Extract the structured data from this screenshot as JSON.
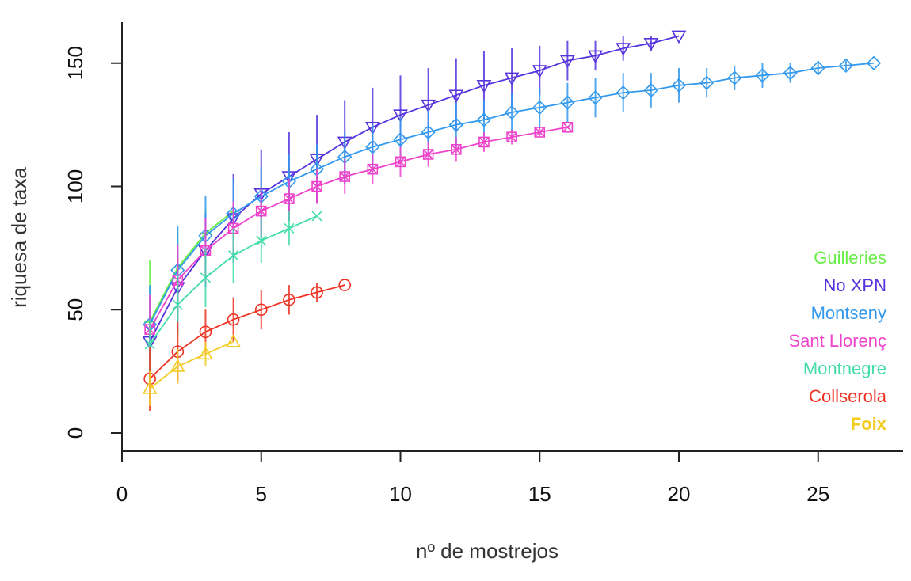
{
  "chart_data": {
    "type": "line",
    "xlabel": "nº de mostrejos",
    "ylabel": "riquesa de taxa",
    "xlim": [
      0,
      28
    ],
    "ylim": [
      0,
      165
    ],
    "xticks": [
      0,
      5,
      10,
      15,
      20,
      25
    ],
    "yticks": [
      0,
      50,
      100,
      150
    ],
    "grid": false,
    "legend_position": "bottom-right",
    "series": [
      {
        "name": "Guilleries",
        "color": "#66ee44",
        "marker": "plus",
        "x": [
          1,
          2,
          3,
          4
        ],
        "y": [
          45,
          67,
          81,
          90
        ],
        "err": [
          25,
          15,
          10,
          5
        ]
      },
      {
        "name": "No XPN",
        "color": "#5533dd",
        "marker": "triangle-down",
        "x": [
          1,
          2,
          3,
          4,
          5,
          6,
          7,
          8,
          9,
          10,
          11,
          12,
          13,
          14,
          15,
          16,
          17,
          18,
          19,
          20
        ],
        "y": [
          37,
          59,
          74,
          87,
          97,
          104,
          111,
          118,
          124,
          129,
          133,
          137,
          141,
          144,
          147,
          151,
          153,
          156,
          158,
          161
        ],
        "err": [
          8,
          14,
          15,
          18,
          18,
          18,
          18,
          17,
          16,
          16,
          15,
          15,
          14,
          12,
          10,
          8,
          6,
          5,
          3,
          0
        ]
      },
      {
        "name": "Montseny",
        "color": "#3399ee",
        "marker": "diamond",
        "x": [
          1,
          2,
          3,
          4,
          5,
          6,
          7,
          8,
          9,
          10,
          11,
          12,
          13,
          14,
          15,
          16,
          17,
          18,
          19,
          20,
          21,
          22,
          23,
          24,
          25,
          26,
          27
        ],
        "y": [
          44,
          66,
          80,
          89,
          96,
          102,
          107,
          112,
          116,
          119,
          122,
          125,
          127,
          130,
          132,
          134,
          136,
          138,
          139,
          141,
          142,
          144,
          145,
          146,
          148,
          149,
          150
        ],
        "err": [
          16,
          18,
          16,
          14,
          12,
          11,
          10,
          10,
          9,
          9,
          9,
          9,
          8,
          8,
          8,
          8,
          8,
          8,
          7,
          7,
          6,
          5,
          5,
          4,
          3,
          2,
          0
        ]
      },
      {
        "name": "Sant Llorenç",
        "color": "#ee44cc",
        "marker": "square-x",
        "x": [
          1,
          2,
          3,
          4,
          5,
          6,
          7,
          8,
          9,
          10,
          11,
          12,
          13,
          14,
          15,
          16
        ],
        "y": [
          42,
          62,
          74,
          83,
          90,
          95,
          100,
          104,
          107,
          110,
          113,
          115,
          118,
          120,
          122,
          124
        ],
        "err": [
          14,
          14,
          13,
          11,
          9,
          8,
          7,
          7,
          6,
          6,
          5,
          5,
          4,
          3,
          2,
          0
        ]
      },
      {
        "name": "Montnegre",
        "color": "#44ddaa",
        "marker": "x",
        "x": [
          1,
          2,
          3,
          4,
          5,
          6,
          7
        ],
        "y": [
          36,
          52,
          63,
          72,
          78,
          83,
          88
        ],
        "err": [
          10,
          12,
          12,
          11,
          9,
          7,
          0
        ]
      },
      {
        "name": "Collserola",
        "color": "#ee3322",
        "marker": "circle",
        "x": [
          1,
          2,
          3,
          4,
          5,
          6,
          7,
          8
        ],
        "y": [
          22,
          33,
          41,
          46,
          50,
          54,
          57,
          60
        ],
        "err": [
          13,
          12,
          9,
          9,
          8,
          6,
          4,
          0
        ]
      },
      {
        "name": "Foix",
        "color": "#f2cc22",
        "marker": "triangle-up",
        "x": [
          1,
          2,
          3,
          4
        ],
        "y": [
          18,
          27,
          32,
          37
        ],
        "err": [
          7,
          7,
          5,
          0
        ]
      }
    ]
  }
}
